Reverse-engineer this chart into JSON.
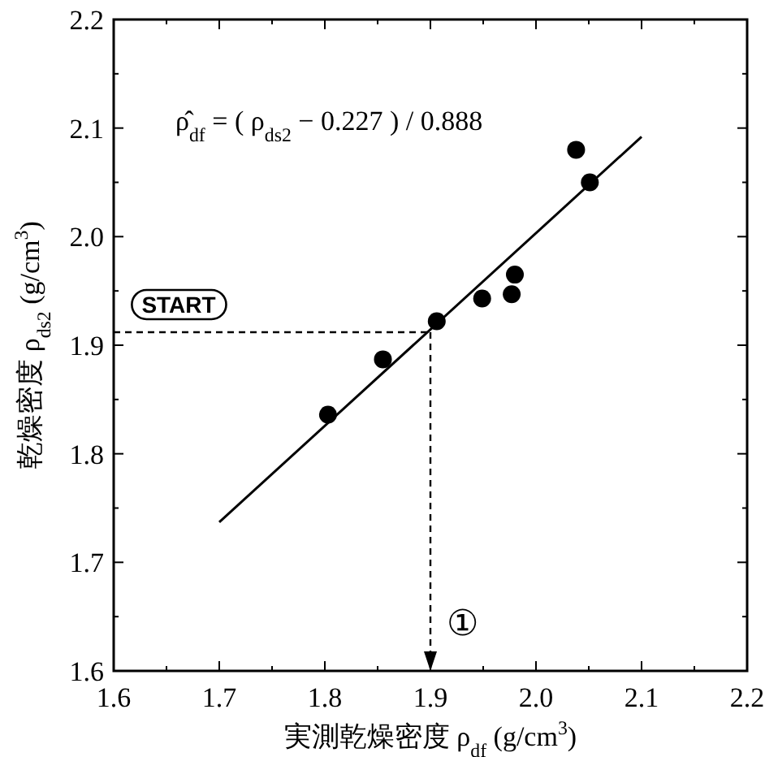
{
  "chart_data": {
    "type": "scatter",
    "xlabel": "実測乾燥密度 ρ$_{df}$ (g/cm$^{3}$)",
    "ylabel": "乾燥密度 ρ$_{ds2}$ (g/cm$^{3}$)",
    "annotations": [
      "ρ̂$_{df}$ = ( ρ$_{ds2}$ − 0.227 ) / 0.888"
    ],
    "series": [
      {
        "color": "#000000",
        "marker": "circle",
        "x": [
          1.803,
          1.855,
          1.906,
          1.949,
          1.977,
          1.98,
          2.038,
          2.051
        ],
        "values": [
          1.836,
          1.887,
          1.922,
          1.943,
          1.947,
          1.965,
          2.08,
          2.05
        ]
      },
      {
        "type": "line",
        "color": "#000000",
        "marker": "none",
        "line_style": "solid",
        "x": [
          1.7,
          2.1
        ],
        "values": [
          1.737,
          2.092
        ]
      }
    ],
    "ref_lines": [
      {
        "axis": "y",
        "value": 1.912,
        "label": "START",
        "line_style": "dashed"
      },
      {
        "axis": "x",
        "value": 1.9,
        "label": "①",
        "line_style": "dashed"
      }
    ],
    "xlim": [
      1.6,
      2.2
    ],
    "ylim": [
      1.6,
      2.2
    ],
    "xticks": [
      1.6,
      1.7,
      1.8,
      1.9,
      {
        "value": 2,
        "label": "2.0"
      },
      2.1,
      2.2
    ],
    "yticks": [
      1.6,
      1.7,
      1.8,
      1.9,
      {
        "value": 2,
        "label": "2.0"
      },
      2.1,
      2.2
    ],
    "grid": false
  }
}
